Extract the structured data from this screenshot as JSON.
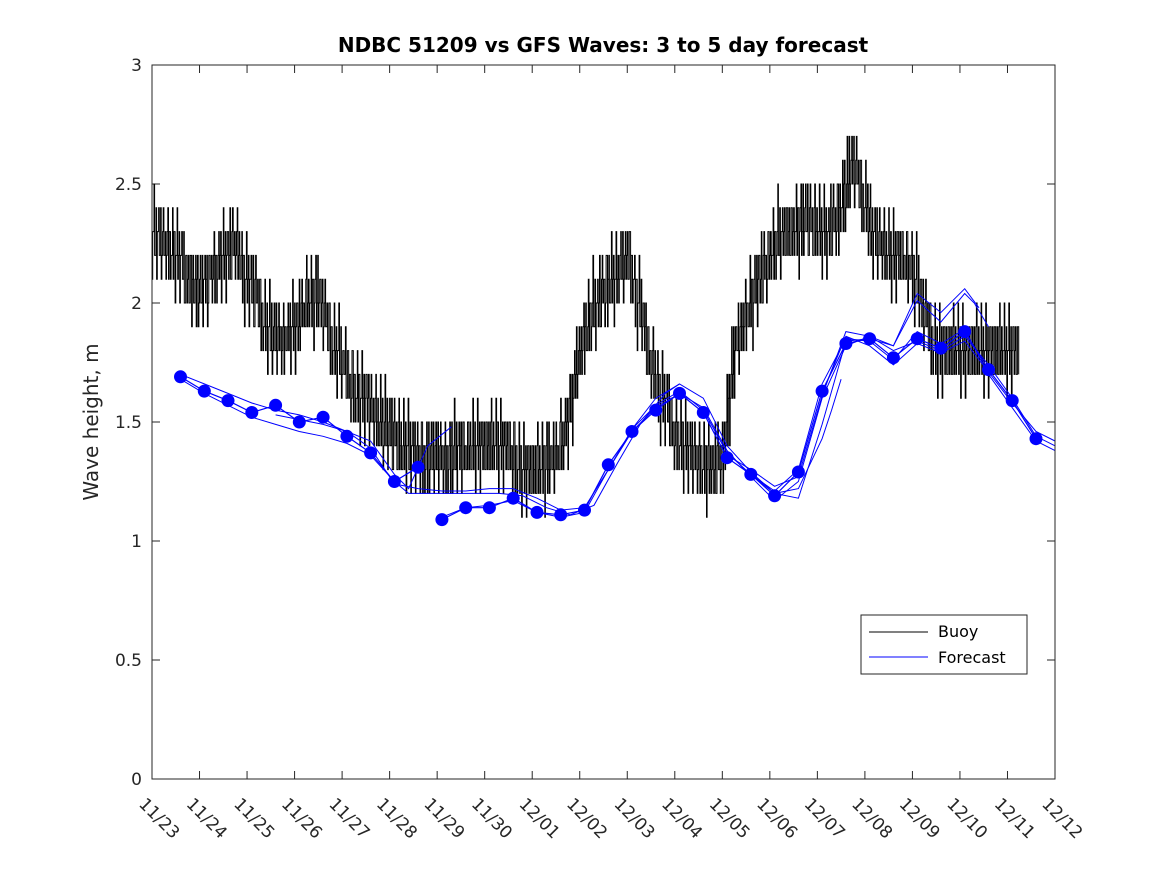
{
  "chart_data": {
    "type": "line",
    "title": "NDBC 51209 vs GFS Waves: 3 to 5 day forecast",
    "xlabel": "",
    "ylabel": "Wave height, m",
    "xlim": [
      0,
      19
    ],
    "ylim": [
      0,
      3
    ],
    "yticks": [
      0,
      0.5,
      1,
      1.5,
      2,
      2.5,
      3
    ],
    "ytick_labels": [
      "0",
      "0.5",
      "1",
      "1.5",
      "2",
      "2.5",
      "3"
    ],
    "xtick_labels": [
      "11/23",
      "11/24",
      "11/25",
      "11/26",
      "11/27",
      "11/28",
      "11/29",
      "11/30",
      "12/01",
      "12/02",
      "12/03",
      "12/04",
      "12/05",
      "12/06",
      "12/07",
      "12/08",
      "12/09",
      "12/10",
      "12/11",
      "12/12"
    ],
    "legend": {
      "position": "lower-right",
      "entries": [
        "Buoy",
        "Forecast"
      ]
    },
    "colors": {
      "buoy": "#000000",
      "forecast": "#0000ff"
    },
    "series": [
      {
        "name": "Buoy",
        "x": [
          0,
          0.25,
          0.5,
          0.75,
          1,
          1.25,
          1.5,
          1.75,
          2,
          2.25,
          2.5,
          2.75,
          3,
          3.25,
          3.5,
          3.75,
          4,
          4.25,
          4.5,
          4.75,
          5,
          5.25,
          5.5,
          5.75,
          6,
          6.25,
          6.5,
          6.75,
          7,
          7.25,
          7.5,
          7.75,
          8,
          8.25,
          8.5,
          8.75,
          9,
          9.25,
          9.5,
          9.75,
          10,
          10.25,
          10.5,
          10.75,
          11,
          11.25,
          11.5,
          11.75,
          12,
          12.25,
          12.5,
          12.75,
          13,
          13.25,
          13.5,
          13.75,
          14,
          14.25,
          14.5,
          14.75,
          15,
          15.25,
          15.5,
          15.75,
          16,
          16.25,
          16.5,
          16.75,
          17,
          17.25,
          17.5,
          17.75,
          18,
          18.25
        ],
        "values": [
          2.3,
          2.25,
          2.22,
          2.1,
          2.05,
          2.12,
          2.2,
          2.25,
          2.1,
          2.0,
          1.85,
          1.85,
          1.9,
          2.0,
          2.05,
          1.85,
          1.75,
          1.65,
          1.6,
          1.5,
          1.45,
          1.4,
          1.38,
          1.35,
          1.35,
          1.36,
          1.38,
          1.4,
          1.4,
          1.42,
          1.4,
          1.32,
          1.3,
          1.32,
          1.35,
          1.5,
          1.8,
          1.95,
          2.05,
          2.1,
          2.2,
          2.0,
          1.75,
          1.6,
          1.45,
          1.4,
          1.35,
          1.32,
          1.35,
          1.8,
          1.95,
          2.1,
          2.2,
          2.3,
          2.3,
          2.35,
          2.3,
          2.3,
          2.4,
          2.6,
          2.4,
          2.25,
          2.2,
          2.2,
          2.15,
          1.95,
          1.8,
          1.8,
          1.8,
          1.8,
          1.8,
          1.8,
          1.8,
          1.8
        ]
      },
      {
        "name": "Forecast",
        "x": [
          0.6,
          1.1,
          1.6,
          2.1,
          2.6,
          3.1,
          3.6,
          4.1,
          4.6,
          5.1,
          5.6,
          6.1,
          6.6,
          7.1,
          7.6,
          8.1,
          8.6,
          9.1,
          9.6,
          10.1,
          10.6,
          11.1,
          11.6,
          12.1,
          12.6,
          13.1,
          13.6,
          14.1,
          14.6,
          15.1,
          15.6,
          16.1,
          16.6,
          17.1,
          17.6,
          18.1,
          18.6
        ],
        "values": [
          1.69,
          1.63,
          1.59,
          1.54,
          1.57,
          1.5,
          1.52,
          1.44,
          1.37,
          1.25,
          1.31,
          1.09,
          1.14,
          1.14,
          1.18,
          1.12,
          1.11,
          1.13,
          1.32,
          1.46,
          1.55,
          1.62,
          1.54,
          1.35,
          1.28,
          1.19,
          1.29,
          1.63,
          1.83,
          1.85,
          1.77,
          1.85,
          1.81,
          1.88,
          1.72,
          1.59,
          1.43
        ]
      }
    ],
    "forecast_runs": [
      {
        "x": [
          0.6,
          1.1,
          1.6,
          2.1,
          2.6,
          3.1,
          3.6,
          4.1,
          4.6,
          5.1,
          5.4,
          5.8,
          6.3
        ],
        "values": [
          1.7,
          1.66,
          1.62,
          1.58,
          1.55,
          1.53,
          1.5,
          1.46,
          1.42,
          1.28,
          1.22,
          1.4,
          1.48
        ]
      },
      {
        "x": [
          0.6,
          1.1,
          1.6,
          2.1,
          2.6,
          3.1,
          3.6,
          4.1,
          4.6,
          5.1,
          5.4,
          5.8,
          6.3,
          6.8,
          7.3,
          7.8,
          8.3,
          8.8,
          9.3,
          9.8,
          10.3,
          10.8,
          11.1
        ],
        "values": [
          1.68,
          1.62,
          1.57,
          1.52,
          1.49,
          1.46,
          1.44,
          1.41,
          1.36,
          1.25,
          1.2,
          1.2,
          1.2,
          1.2,
          1.2,
          1.19,
          1.14,
          1.11,
          1.15,
          1.33,
          1.5,
          1.62,
          1.66
        ]
      },
      {
        "x": [
          2.6,
          3.1,
          3.6,
          4.1,
          4.6,
          5.1,
          5.6,
          6.1,
          6.6,
          7.1,
          7.6,
          8.1,
          8.6,
          9.1,
          9.6,
          10.1,
          10.6,
          11.1,
          11.6,
          12.1,
          12.6,
          13.1,
          13.6,
          14.1,
          14.3,
          14.5
        ],
        "values": [
          1.53,
          1.51,
          1.49,
          1.46,
          1.39,
          1.24,
          1.22,
          1.21,
          1.21,
          1.22,
          1.22,
          1.18,
          1.13,
          1.14,
          1.3,
          1.47,
          1.6,
          1.66,
          1.6,
          1.4,
          1.29,
          1.2,
          1.22,
          1.43,
          1.55,
          1.68
        ]
      },
      {
        "x": [
          6.1,
          6.6,
          7.1,
          7.6,
          8.1,
          8.6,
          9.1,
          9.6,
          10.1,
          10.6,
          11.1,
          11.6,
          12.1,
          12.6,
          13.1,
          13.6,
          14.1,
          14.6,
          15.1,
          15.6,
          16.1,
          16.6,
          17.1,
          17.6,
          18.1,
          18.6,
          19.0
        ],
        "values": [
          1.1,
          1.14,
          1.15,
          1.17,
          1.12,
          1.1,
          1.12,
          1.3,
          1.46,
          1.56,
          1.62,
          1.56,
          1.38,
          1.27,
          1.17,
          1.25,
          1.6,
          1.82,
          1.86,
          1.8,
          1.84,
          1.8,
          1.86,
          1.74,
          1.6,
          1.44,
          1.4
        ]
      },
      {
        "x": [
          10.1,
          10.6,
          11.1,
          11.6,
          12.1,
          12.6,
          13.1,
          13.6,
          14.1,
          14.6,
          15.1,
          15.6,
          16.1,
          16.6,
          17.1,
          17.6,
          18.1,
          18.6,
          19.0
        ],
        "values": [
          1.47,
          1.57,
          1.63,
          1.55,
          1.37,
          1.28,
          1.21,
          1.3,
          1.66,
          1.85,
          1.84,
          1.76,
          1.88,
          1.83,
          1.89,
          1.7,
          1.56,
          1.42,
          1.38
        ]
      },
      {
        "x": [
          14.1,
          14.6,
          15.1,
          15.6,
          16.1,
          16.6,
          17.1,
          17.6,
          18.1,
          18.6,
          19.0
        ],
        "values": [
          1.62,
          1.86,
          1.82,
          1.74,
          1.83,
          1.79,
          1.84,
          1.71,
          1.58,
          1.46,
          1.42
        ]
      },
      {
        "x": [
          12.1,
          12.6,
          13.1,
          13.6,
          14.1,
          14.6,
          15.1,
          15.6,
          16.1,
          16.6,
          17.1,
          17.3,
          17.6
        ],
        "values": [
          1.36,
          1.3,
          1.23,
          1.27,
          1.61,
          1.88,
          1.86,
          1.82,
          2.01,
          1.92,
          2.04,
          2.0,
          1.9
        ]
      },
      {
        "x": [
          12.6,
          13.1,
          13.6,
          14.1,
          14.6,
          15.1,
          15.6,
          16.1,
          16.6,
          17.1,
          17.4
        ],
        "values": [
          1.28,
          1.2,
          1.18,
          1.49,
          1.84,
          1.85,
          1.82,
          2.04,
          1.96,
          2.06,
          1.98
        ]
      }
    ]
  }
}
